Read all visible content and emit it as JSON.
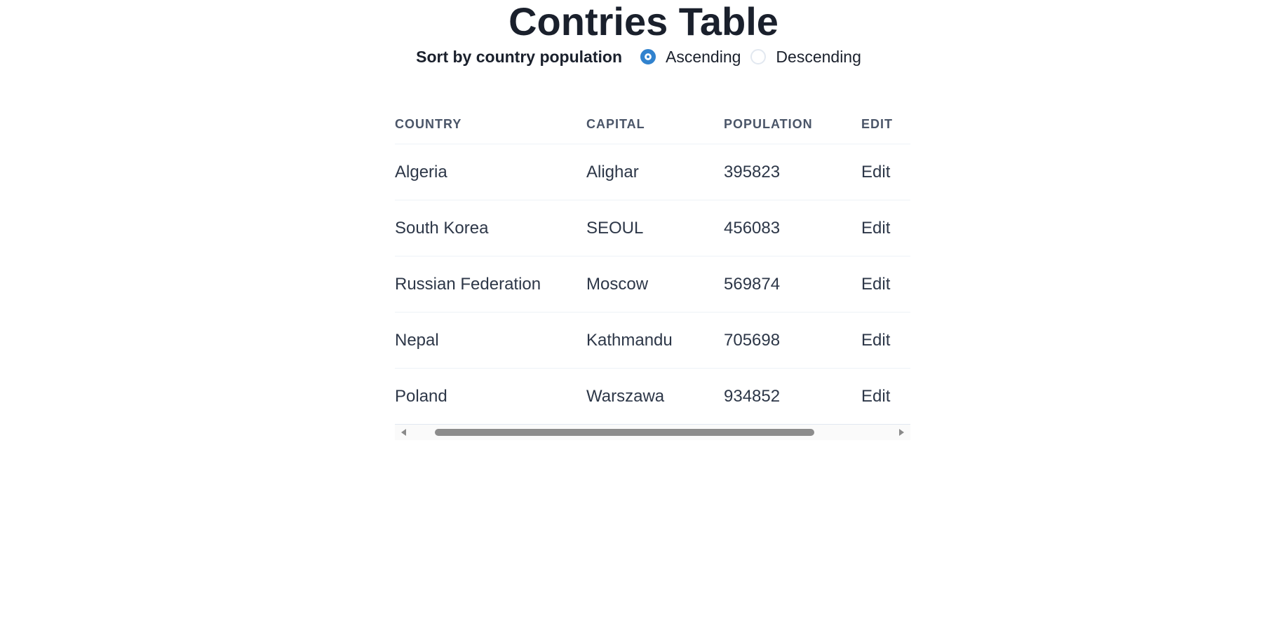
{
  "page": {
    "title": "Contries Table"
  },
  "sort": {
    "label": "Sort by country population",
    "options": [
      {
        "label": "Ascending",
        "checked": true
      },
      {
        "label": "Descending",
        "checked": false
      }
    ]
  },
  "table": {
    "headers": [
      "COUNTRY",
      "CAPITAL",
      "POPULATION",
      "EDIT"
    ],
    "rows": [
      {
        "country": "Algeria",
        "capital": "Alighar",
        "population": "395823",
        "edit": "Edit"
      },
      {
        "country": "South Korea",
        "capital": "SEOUL",
        "population": "456083",
        "edit": "Edit"
      },
      {
        "country": "Russian Federation",
        "capital": "Moscow",
        "population": "569874",
        "edit": "Edit"
      },
      {
        "country": "Nepal",
        "capital": "Kathmandu",
        "population": "705698",
        "edit": "Edit"
      },
      {
        "country": "Poland",
        "capital": "Warszawa",
        "population": "934852",
        "edit": "Edit"
      }
    ]
  },
  "colors": {
    "accent": "#3182ce",
    "heading": "#1a202c",
    "text": "#2d3748",
    "header_text": "#4a5568"
  }
}
